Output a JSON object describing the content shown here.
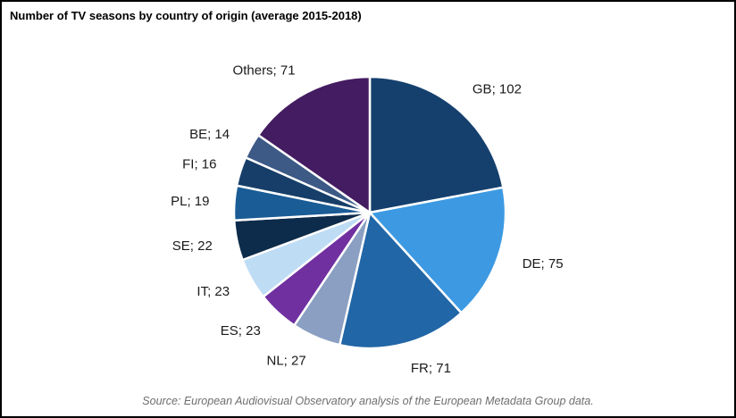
{
  "chart_data": {
    "type": "pie",
    "title": "Number of TV seasons by country of origin (average 2015-2018)",
    "source": "Source: European Audiovisual Observatory analysis of the European Metadata Group data.",
    "legend": "none",
    "label_format": "{name}; {value}",
    "slices": [
      {
        "name": "GB",
        "value": 102,
        "color": "#15406e"
      },
      {
        "name": "DE",
        "value": 75,
        "color": "#3d9ae2"
      },
      {
        "name": "FR",
        "value": 71,
        "color": "#2166a6"
      },
      {
        "name": "NL",
        "value": 27,
        "color": "#8a9fc2"
      },
      {
        "name": "ES",
        "value": 23,
        "color": "#7030a0"
      },
      {
        "name": "IT",
        "value": 23,
        "color": "#bfdcf5"
      },
      {
        "name": "SE",
        "value": 22,
        "color": "#0d2b4a"
      },
      {
        "name": "PL",
        "value": 19,
        "color": "#1a5c96"
      },
      {
        "name": "FI",
        "value": 16,
        "color": "#163e68"
      },
      {
        "name": "BE",
        "value": 14,
        "color": "#3d5a86"
      },
      {
        "name": "Others",
        "value": 71,
        "color": "#441c61"
      }
    ]
  }
}
